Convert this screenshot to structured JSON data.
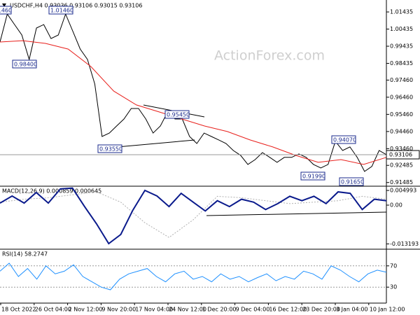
{
  "chart_data": [
    {
      "type": "line",
      "title": "USDCHF,H4  0.93036 0.93106 0.93015 0.93106",
      "watermark": "ActionForex.com",
      "ylim": [
        0.9131,
        1.0205
      ],
      "yticks": [
        1.01435,
        1.00435,
        0.99435,
        0.98435,
        {
          "value": 0.9746,
          "label": "0.97460"
        },
        {
          "value": 0.9646,
          "label": "0.96460"
        },
        {
          "value": 0.9546,
          "label": "0.95460"
        },
        {
          "value": 0.9446,
          "label": "0.94460"
        },
        {
          "value": 0.9346,
          "label": "0.93460"
        },
        0.92485,
        0.91485
      ],
      "last_price": 0.93106,
      "annotations": [
        "1.01460",
        "1.01460",
        "0.98400",
        "0.95450",
        "0.93550",
        "0.94070",
        "0.91990",
        "0.91650"
      ],
      "series": [
        {
          "color": "#000000",
          "width": 1,
          "values": [
            0.9968,
            1.0131,
            1.007,
            1.0009,
            0.9866,
            1.005,
            1.007,
            0.9988,
            1.0009,
            1.0131,
            1.0029,
            0.9927,
            0.9866,
            0.9723,
            0.9417,
            0.9437,
            0.9478,
            0.9519,
            0.958,
            0.958,
            0.9519,
            0.9437,
            0.9478,
            0.956,
            0.9519,
            0.9519,
            0.9417,
            0.9376,
            0.9437,
            0.9417,
            0.9397,
            0.9376,
            0.9335,
            0.9307,
            0.9254,
            0.9282,
            0.9323,
            0.9295,
            0.9266,
            0.9295,
            0.9295,
            0.9315,
            0.9295,
            0.9254,
            0.9233,
            0.9254,
            0.9389,
            0.9335,
            0.9356,
            0.9295,
            0.9213,
            0.9242,
            0.9335,
            0.9311
          ]
        },
        {
          "color": "#e8201c",
          "width": 1,
          "values": [
            0.9968,
            0.9976,
            0.996,
            0.9927,
            0.9825,
            0.9682,
            0.9601,
            0.956,
            0.9519,
            0.9478,
            0.9446,
            0.9397,
            0.9356,
            0.9307,
            0.9266,
            0.9282,
            0.9254,
            0.9295
          ]
        }
      ]
    },
    {
      "type": "line",
      "title": "MACD(12,26,9) 0.000859 0.000645",
      "ylim": [
        -0.01476,
        0.0062
      ],
      "yticks": [
        0.004993,
        {
          "value": 0,
          "label": "0.00"
        },
        -0.013193
      ],
      "series": [
        {
          "color": "#b0b0b0",
          "width": 1,
          "style": "dotted",
          "values": [
            0.001,
            0.002,
            0.0025,
            0.0035,
            0.0045,
            0.001,
            -0.006,
            -0.011,
            -0.005,
            0.003,
            0.0025,
            0.0015,
            0.0005,
            0.001,
            0.0015,
            0.003,
            0.002
          ]
        },
        {
          "color": "#0a1a8c",
          "width": 2,
          "values": [
            0.0007,
            0.0031,
            0.0007,
            0.0043,
            0.0007,
            0.0055,
            0.0058,
            -0.0005,
            -0.0064,
            -0.0131,
            -0.01,
            -0.0017,
            0.005,
            0.0031,
            -0.0005,
            0.004,
            0.001,
            -0.002,
            0.0015,
            -0.0005,
            0.002,
            0.001,
            -0.0015,
            0.0005,
            0.003,
            0.0015,
            0.003,
            0.0005,
            0.0045,
            0.004,
            -0.0015,
            0.002,
            0.0015
          ]
        }
      ]
    },
    {
      "type": "line",
      "title": "RSI(14) 58.2747",
      "ylim": [
        0,
        100
      ],
      "yticks": [
        70,
        30
      ],
      "grid": true,
      "x_labels": [
        "18 Oct 2022",
        "26 Oct 04:00",
        "2 Nov 12:00",
        "9 Nov 20:00",
        "17 Nov 04:00",
        "24 Nov 12:00",
        "1 Dec 20:00",
        "9 Dec 04:00",
        "16 Dec 12:00",
        "23 Dec 20:00",
        "3 Jan 04:00",
        "10 Jan 12:00"
      ],
      "series": [
        {
          "color": "#1e90ff",
          "width": 1,
          "values": [
            60,
            75,
            50,
            65,
            45,
            70,
            55,
            60,
            72,
            50,
            40,
            30,
            25,
            45,
            55,
            60,
            65,
            50,
            40,
            55,
            60,
            45,
            50,
            40,
            55,
            45,
            50,
            40,
            48,
            55,
            42,
            50,
            45,
            60,
            55,
            45,
            70,
            62,
            50,
            40,
            55,
            62,
            58
          ]
        }
      ]
    }
  ]
}
